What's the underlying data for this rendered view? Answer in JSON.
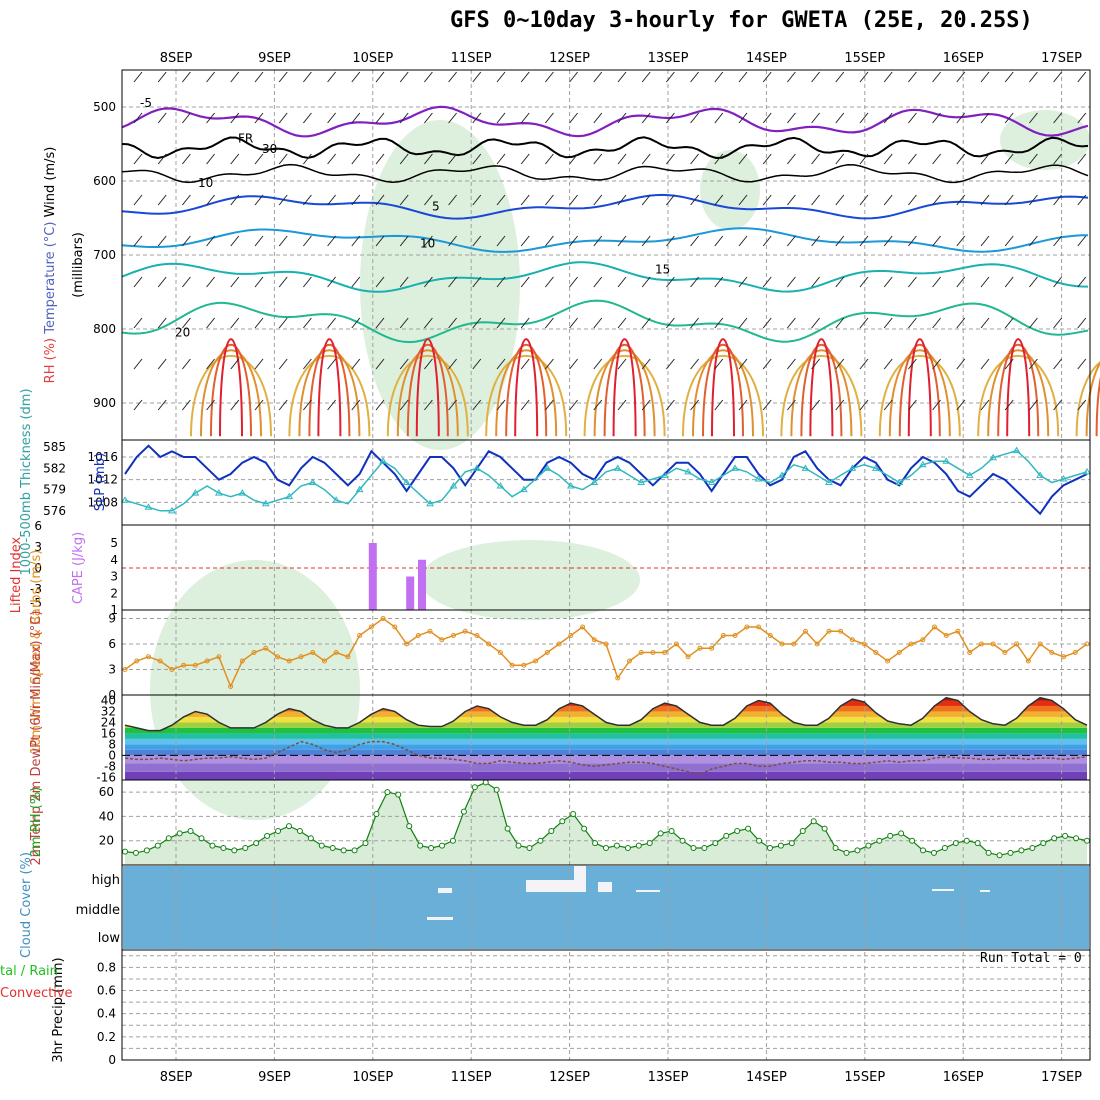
{
  "title": "GFS 0~10day 3-hourly for GWETA (25E, 20.25S)",
  "dates": [
    "8SEP",
    "9SEP",
    "10SEP",
    "11SEP",
    "12SEP",
    "13SEP",
    "14SEP",
    "15SEP",
    "16SEP",
    "17SEP"
  ],
  "run_total": "Run Total = 0",
  "colors": {
    "grid": "#a0a0a0",
    "rh_fill": "#cfe8cf",
    "slp": "#1030c0",
    "thickness": "#30b8c0",
    "cape": "#c070f0",
    "li": "#e03030",
    "wind": "#e09020",
    "rh_line": "#108010",
    "cloud_bg": "#6aafd8",
    "cloud_cell": "#f4f4f8"
  },
  "chart_data": [
    {
      "panel": "upper-air",
      "type": "contour",
      "ylabel_parts": [
        "Wind (m/s)",
        "Temperature (°C)",
        "RH (%)"
      ],
      "ylabel2": "(millibars)",
      "yticks": [
        500,
        600,
        700,
        800,
        900
      ],
      "ylim": [
        950,
        450
      ],
      "contour_labels": [
        "-5",
        "FR",
        "5",
        "10",
        "15",
        "20",
        "10",
        "30"
      ]
    },
    {
      "panel": "slp-thickness",
      "type": "line",
      "ylabel_left": "1000-500mb Thickness (dm)",
      "ylabel_right": "SLP (mb)",
      "yticks_left": [
        576,
        579,
        582,
        585
      ],
      "yticks_right": [
        1008,
        1012,
        1016
      ],
      "series": [
        {
          "name": "SLP",
          "values": [
            1013,
            1016,
            1018,
            1016,
            1017,
            1016,
            1016,
            1014,
            1012,
            1013,
            1015,
            1016,
            1015,
            1012,
            1011,
            1014,
            1016,
            1015,
            1013,
            1011,
            1013,
            1017,
            1015,
            1013,
            1010,
            1013,
            1016,
            1016,
            1014,
            1011,
            1014,
            1017,
            1016,
            1014,
            1012,
            1012,
            1015,
            1016,
            1015,
            1013,
            1012,
            1015,
            1016,
            1015,
            1013,
            1011,
            1013,
            1015,
            1015,
            1013,
            1010,
            1013,
            1016,
            1016,
            1013,
            1011,
            1012,
            1016,
            1017,
            1014,
            1012,
            1011,
            1014,
            1016,
            1015,
            1012,
            1011,
            1014,
            1016,
            1015,
            1013,
            1010,
            1009,
            1011,
            1013,
            1012,
            1010,
            1008,
            1006,
            1009,
            1011,
            1012,
            1013
          ]
        },
        {
          "name": "Thickness",
          "values": [
            577.5,
            577,
            576.5,
            576,
            576,
            577,
            578.5,
            579.5,
            578.5,
            578,
            578.5,
            577.5,
            577,
            577.5,
            578,
            579.5,
            580,
            579,
            577.5,
            577,
            579,
            581,
            583,
            582,
            580,
            578.5,
            577,
            577.5,
            579.5,
            581.5,
            582,
            581,
            579.5,
            578,
            579,
            580.5,
            582,
            581,
            579.5,
            579,
            580,
            581.5,
            582,
            581,
            580,
            580.5,
            581,
            582,
            581.5,
            580.5,
            580,
            581,
            582,
            581.5,
            580.5,
            580,
            581,
            582.5,
            582,
            581,
            580,
            581,
            582,
            582.5,
            582,
            581,
            580,
            581,
            582.5,
            583,
            583,
            582,
            581,
            582,
            583.5,
            584,
            584.5,
            583,
            581,
            580,
            580.5,
            581,
            581.5
          ]
        }
      ]
    },
    {
      "panel": "cape-li",
      "type": "bar",
      "ylabel_left": "Lifted Index",
      "ylabel_right": "CAPE (J/kg)",
      "yticks_left": [
        "-5",
        "-3",
        "0",
        "3",
        "6"
      ],
      "yticks_right": [
        1,
        2,
        3,
        4,
        5
      ],
      "cape_bars": [
        {
          "date_index": 2.0,
          "value": 5
        },
        {
          "date_index": 2.38,
          "value": 3
        },
        {
          "date_index": 2.5,
          "value": 4
        }
      ],
      "li_nonzero_zones": [
        "10SEP",
        "10SEP-11SEP",
        "11SEP",
        "11SEP-12SEP",
        "16SEP"
      ]
    },
    {
      "panel": "wind10m",
      "type": "line",
      "ylabel": "10m Wind Speed & Barbs (m/s)",
      "yticks": [
        0,
        3,
        6,
        9
      ],
      "series": [
        {
          "name": "Speed",
          "values": [
            3,
            4,
            4.5,
            4,
            3,
            3.5,
            3.5,
            4,
            4.5,
            1,
            4,
            5,
            5.5,
            4.5,
            4,
            4.5,
            5,
            4,
            5,
            4.5,
            7,
            8,
            9,
            8,
            6,
            7,
            7.5,
            6.5,
            7,
            7.5,
            7,
            6,
            5,
            3.5,
            3.5,
            4,
            5,
            6,
            7,
            8,
            6.5,
            6,
            2,
            4,
            5,
            5,
            5,
            6,
            4.5,
            5.5,
            5.5,
            7,
            7,
            8,
            8,
            7,
            6,
            6,
            7.5,
            6,
            7.5,
            7.5,
            6.5,
            6,
            5,
            4,
            5,
            6,
            6.5,
            8,
            7,
            7.5,
            5,
            6,
            6,
            5,
            6,
            4,
            6,
            5,
            4.5,
            5,
            6
          ]
        }
      ]
    },
    {
      "panel": "temp2m",
      "type": "area",
      "ylabel": "2m Temp 2m DewPt (6hr Min/Max) (°C)",
      "yticks": [
        -16,
        -8,
        0,
        8,
        16,
        24,
        32,
        40
      ],
      "series": [
        {
          "name": "Temp",
          "values": [
            22,
            20,
            18,
            18,
            22,
            28,
            32,
            30,
            24,
            20,
            20,
            20,
            24,
            30,
            34,
            32,
            26,
            22,
            20,
            20,
            24,
            30,
            34,
            32,
            26,
            22,
            21,
            21,
            25,
            32,
            36,
            34,
            28,
            24,
            22,
            22,
            26,
            34,
            38,
            36,
            30,
            24,
            22,
            22,
            26,
            34,
            38,
            36,
            30,
            24,
            22,
            22,
            27,
            36,
            40,
            38,
            30,
            24,
            22,
            22,
            27,
            36,
            41,
            39,
            31,
            25,
            23,
            22,
            27,
            36,
            42,
            40,
            32,
            26,
            23,
            22,
            27,
            36,
            42,
            40,
            34,
            26,
            22
          ]
        },
        {
          "name": "DewPt",
          "values": [
            -2,
            -3,
            -3,
            -2,
            -3,
            -4,
            -3,
            -2,
            -2,
            -1,
            -2,
            -3,
            -2,
            2,
            6,
            10,
            8,
            4,
            2,
            4,
            8,
            10,
            10,
            8,
            4,
            0,
            -2,
            -2,
            -3,
            -4,
            -6,
            -6,
            -4,
            -5,
            -6,
            -6,
            -5,
            -4,
            -5,
            -7,
            -8,
            -7,
            -6,
            -5,
            -5,
            -6,
            -8,
            -10,
            -12,
            -14,
            -10,
            -8,
            -6,
            -6,
            -8,
            -8,
            -6,
            -5,
            -4,
            -4,
            -5,
            -5,
            -6,
            -6,
            -5,
            -4,
            -5,
            -4,
            -4,
            -2,
            -1,
            -2,
            -2,
            -3,
            -3,
            -2,
            -2,
            -3,
            -2,
            -2,
            -3,
            -2,
            -1
          ]
        }
      ]
    },
    {
      "panel": "rh2m",
      "type": "area",
      "ylabel": "2m RH (%)",
      "yticks": [
        20,
        40,
        60
      ],
      "series": [
        {
          "name": "RH",
          "values": [
            11,
            10,
            12,
            16,
            22,
            26,
            28,
            22,
            16,
            14,
            12,
            14,
            18,
            24,
            28,
            32,
            28,
            22,
            16,
            14,
            12,
            12,
            18,
            42,
            60,
            58,
            32,
            16,
            14,
            16,
            20,
            44,
            64,
            68,
            62,
            30,
            16,
            14,
            20,
            28,
            36,
            42,
            30,
            18,
            14,
            16,
            14,
            16,
            18,
            26,
            28,
            20,
            14,
            14,
            18,
            24,
            28,
            30,
            20,
            14,
            16,
            18,
            28,
            36,
            30,
            14,
            10,
            12,
            16,
            20,
            24,
            26,
            20,
            12,
            10,
            14,
            18,
            20,
            18,
            10,
            8,
            10,
            12,
            14,
            18,
            22,
            24,
            22,
            20
          ]
        }
      ]
    },
    {
      "panel": "cloud",
      "type": "heatmap",
      "ylabel": "Cloud Cover (%)",
      "levels": [
        "high",
        "middle",
        "low"
      ]
    },
    {
      "panel": "precip",
      "type": "bar",
      "ylabel": "3hr Precip (mm)",
      "ylabel_left": "tal / Rain",
      "ylabel_left2": "Convective",
      "yticks": [
        0,
        0.2,
        0.4,
        0.6,
        0.8
      ],
      "values": []
    }
  ]
}
